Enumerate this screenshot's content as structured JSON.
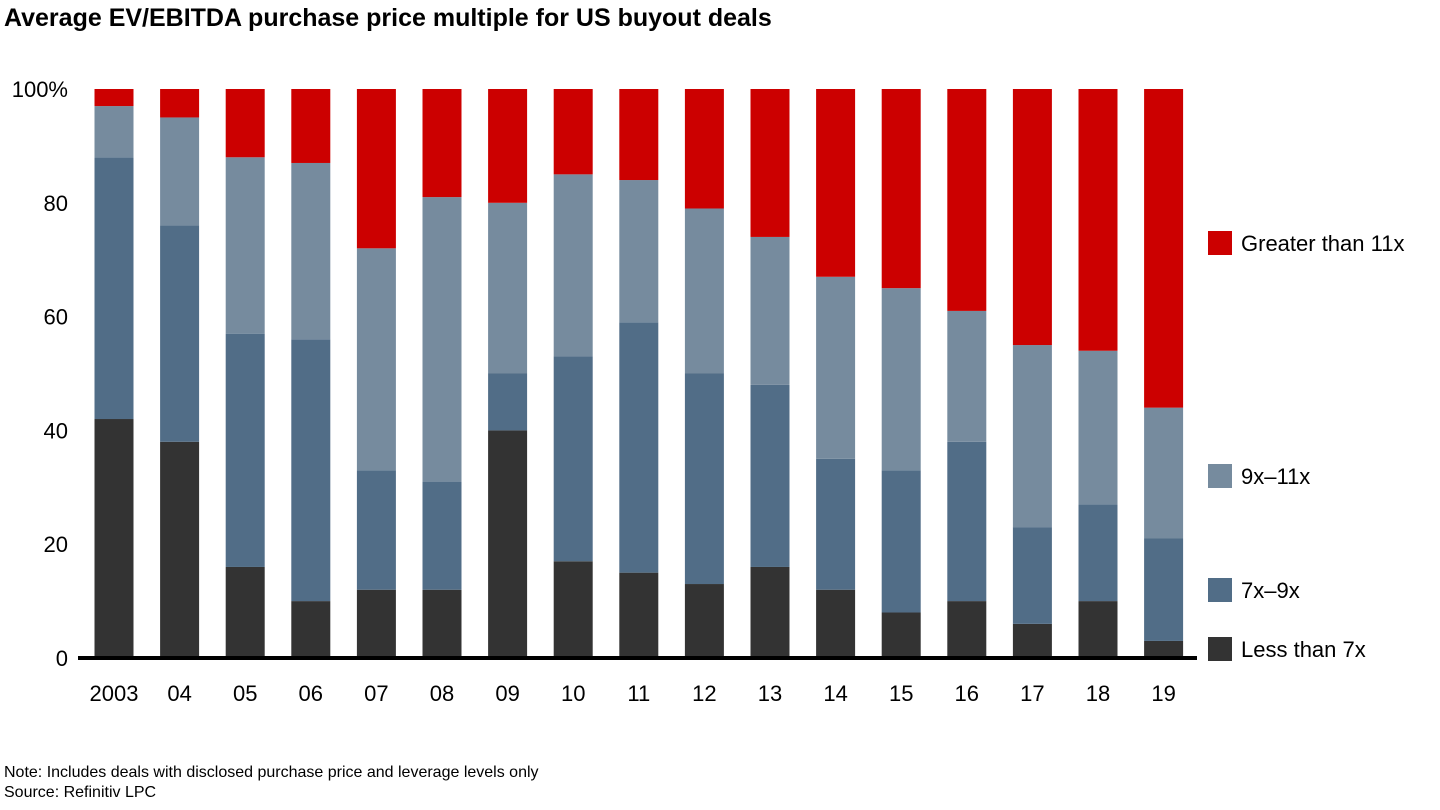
{
  "title": "Average EV/EBITDA purchase price multiple for US buyout deals",
  "notes": {
    "note": "Note: Includes deals with disclosed purchase price and leverage levels only",
    "source": "Source: Refinitiv LPC"
  },
  "chart_data": {
    "type": "stacked-bar",
    "title": "Average EV/EBITDA purchase price multiple for US buyout deals",
    "xlabel": "",
    "ylabel": "",
    "ylim": [
      0,
      100
    ],
    "yticks": [
      "0",
      "20",
      "40",
      "60",
      "80",
      "100%"
    ],
    "categories": [
      "2003",
      "04",
      "05",
      "06",
      "07",
      "08",
      "09",
      "10",
      "11",
      "12",
      "13",
      "14",
      "15",
      "16",
      "17",
      "18",
      "19"
    ],
    "legend_position": "right",
    "grid": false,
    "series": [
      {
        "name": "Less than 7x",
        "color": "#333333",
        "values": [
          42,
          38,
          16,
          10,
          12,
          12,
          40,
          17,
          15,
          13,
          16,
          12,
          8,
          10,
          6,
          10,
          3
        ]
      },
      {
        "name": "7x–9x",
        "color": "#516d87",
        "values": [
          46,
          38,
          41,
          46,
          21,
          19,
          10,
          36,
          44,
          37,
          32,
          23,
          25,
          28,
          17,
          17,
          18
        ]
      },
      {
        "name": "9x–11x",
        "color": "#768b9e",
        "values": [
          9,
          19,
          31,
          31,
          39,
          50,
          30,
          32,
          25,
          29,
          26,
          32,
          32,
          23,
          32,
          27,
          23
        ]
      },
      {
        "name": "Greater than 11x",
        "color": "#cc0000",
        "values": [
          3,
          5,
          12,
          13,
          28,
          19,
          20,
          15,
          16,
          21,
          26,
          33,
          35,
          39,
          45,
          46,
          56
        ]
      }
    ]
  }
}
